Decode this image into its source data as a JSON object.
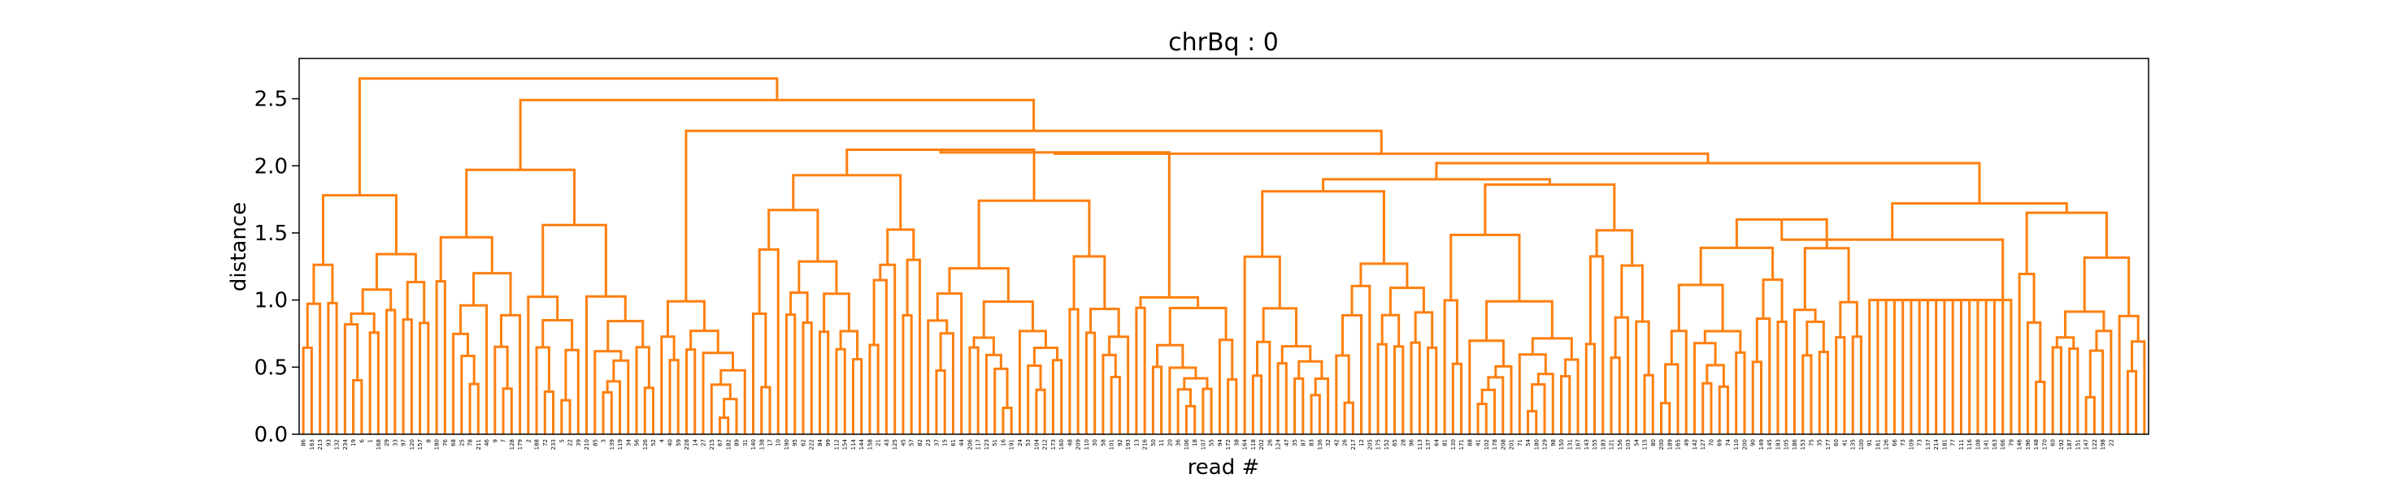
{
  "chart_data": {
    "type": "dendrogram",
    "title": "chrBq : 0",
    "xlabel": "read #",
    "ylabel": "distance",
    "ylim": [
      0,
      2.8
    ],
    "yticks": [
      0.0,
      0.5,
      1.0,
      1.5,
      2.0,
      2.5
    ],
    "ytick_labels": [
      "0.0",
      "0.5",
      "1.0",
      "1.5",
      "2.0",
      "2.5"
    ],
    "link_color": "#ff7f0e",
    "leaf_count": 222,
    "leaf_labels": [
      "86",
      "163",
      "213",
      "93",
      "132",
      "234",
      "19",
      "6",
      "1",
      "168",
      "29",
      "33",
      "97",
      "120",
      "157",
      "8",
      "180",
      "76",
      "68",
      "25",
      "78",
      "211",
      "46",
      "9",
      "7",
      "128",
      "179",
      "2",
      "188",
      "72",
      "233",
      "5",
      "22",
      "39",
      "210",
      "85",
      "3",
      "139",
      "119",
      "34",
      "56",
      "126",
      "52",
      "4",
      "40",
      "59",
      "228",
      "14",
      "27",
      "215",
      "67",
      "182",
      "89",
      "31",
      "140",
      "138",
      "17",
      "10",
      "190",
      "95",
      "62",
      "222",
      "84",
      "99",
      "112",
      "154",
      "114",
      "144",
      "158",
      "21",
      "43",
      "125",
      "45",
      "57",
      "82",
      "23",
      "37",
      "15",
      "61",
      "44",
      "206",
      "117",
      "123",
      "51",
      "16",
      "191",
      "24",
      "53",
      "104",
      "212",
      "173",
      "160",
      "48",
      "209",
      "110",
      "30",
      "58",
      "101",
      "92",
      "193",
      "13",
      "216",
      "50",
      "11",
      "20",
      "36",
      "106",
      "18",
      "107",
      "55",
      "94",
      "172",
      "38",
      "164",
      "118",
      "202",
      "26",
      "124",
      "47",
      "35",
      "87",
      "83",
      "136",
      "32",
      "42",
      "26",
      "217",
      "12",
      "205",
      "175",
      "152",
      "65",
      "28",
      "96",
      "113",
      "137",
      "64",
      "81",
      "130",
      "171",
      "88",
      "41",
      "102",
      "178",
      "208",
      "201",
      "71",
      "54",
      "180",
      "129",
      "98",
      "150",
      "131",
      "167",
      "143",
      "155",
      "183",
      "121",
      "156",
      "103",
      "54",
      "115",
      "80",
      "200",
      "189",
      "165",
      "49",
      "142",
      "127",
      "70",
      "69",
      "74",
      "110",
      "200",
      "90",
      "149",
      "145",
      "183",
      "105",
      "186",
      "153",
      "75",
      "35",
      "177",
      "60",
      "41",
      "135",
      "100",
      "91",
      "161",
      "126",
      "66",
      "73",
      "109",
      "73",
      "137",
      "214",
      "181",
      "77",
      "111",
      "116",
      "108",
      "141",
      "163",
      "166",
      "79",
      "146",
      "196",
      "148",
      "170",
      "60",
      "192",
      "187",
      "151",
      "147",
      "122",
      "198",
      "22"
    ]
  }
}
